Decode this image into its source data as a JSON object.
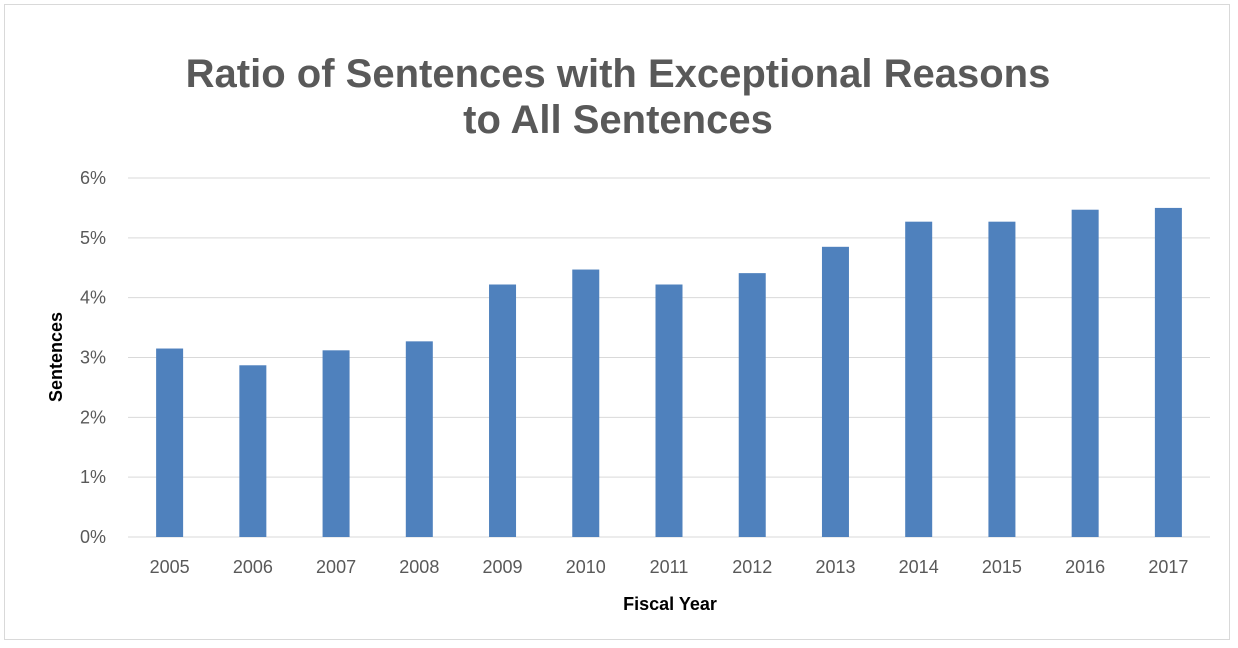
{
  "chart_data": {
    "type": "bar",
    "title_lines": [
      "Ratio of Sentences with Exceptional Reasons",
      "to All Sentences"
    ],
    "xlabel": "Fiscal Year",
    "ylabel": "Sentences",
    "categories": [
      "2005",
      "2006",
      "2007",
      "2008",
      "2009",
      "2010",
      "2011",
      "2012",
      "2013",
      "2014",
      "2015",
      "2016",
      "2017"
    ],
    "values": [
      3.15,
      2.87,
      3.12,
      3.27,
      4.22,
      4.47,
      4.22,
      4.41,
      4.85,
      5.27,
      5.27,
      5.47,
      5.5
    ],
    "value_unit": "%",
    "ylim": [
      0,
      6
    ],
    "yticks": [
      "0%",
      "1%",
      "2%",
      "3%",
      "4%",
      "5%",
      "6%"
    ],
    "grid": true,
    "legend": "none",
    "colors": {
      "bar": "#4f81bd",
      "grid": "#d9d9d9",
      "text": "#595959"
    }
  }
}
